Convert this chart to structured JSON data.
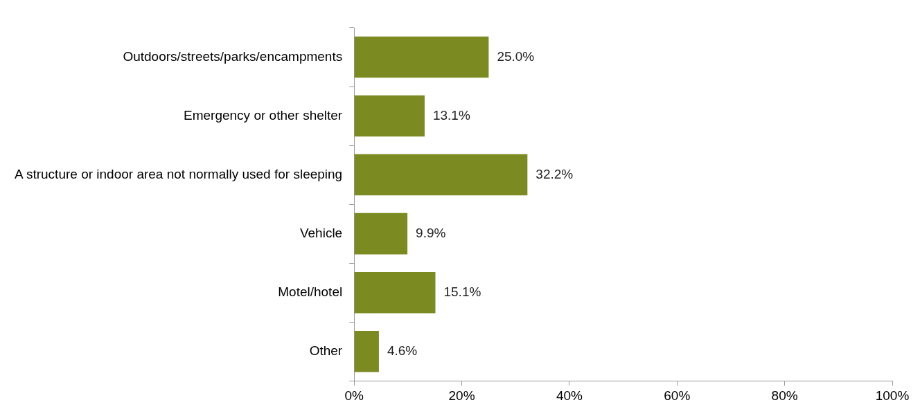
{
  "chart_data": {
    "type": "bar",
    "orientation": "horizontal",
    "categories": [
      "Outdoors/streets/parks/encampments",
      "Emergency or other shelter",
      "A structure or indoor area not normally used for sleeping",
      "Vehicle",
      "Motel/hotel",
      "Other"
    ],
    "values": [
      25.0,
      13.1,
      32.2,
      9.9,
      15.1,
      4.6
    ],
    "value_labels": [
      "25.0%",
      "13.1%",
      "32.2%",
      "9.9%",
      "15.1%",
      "4.6%"
    ],
    "color": "#7b8b22",
    "xlim": [
      0,
      100
    ],
    "xticks": [
      {
        "value": 0,
        "label": "0%"
      },
      {
        "value": 20,
        "label": "20%"
      },
      {
        "value": 40,
        "label": "40%"
      },
      {
        "value": 60,
        "label": "60%"
      },
      {
        "value": 80,
        "label": "80%"
      },
      {
        "value": 100,
        "label": "100%"
      }
    ],
    "grid": false,
    "legend": false
  }
}
